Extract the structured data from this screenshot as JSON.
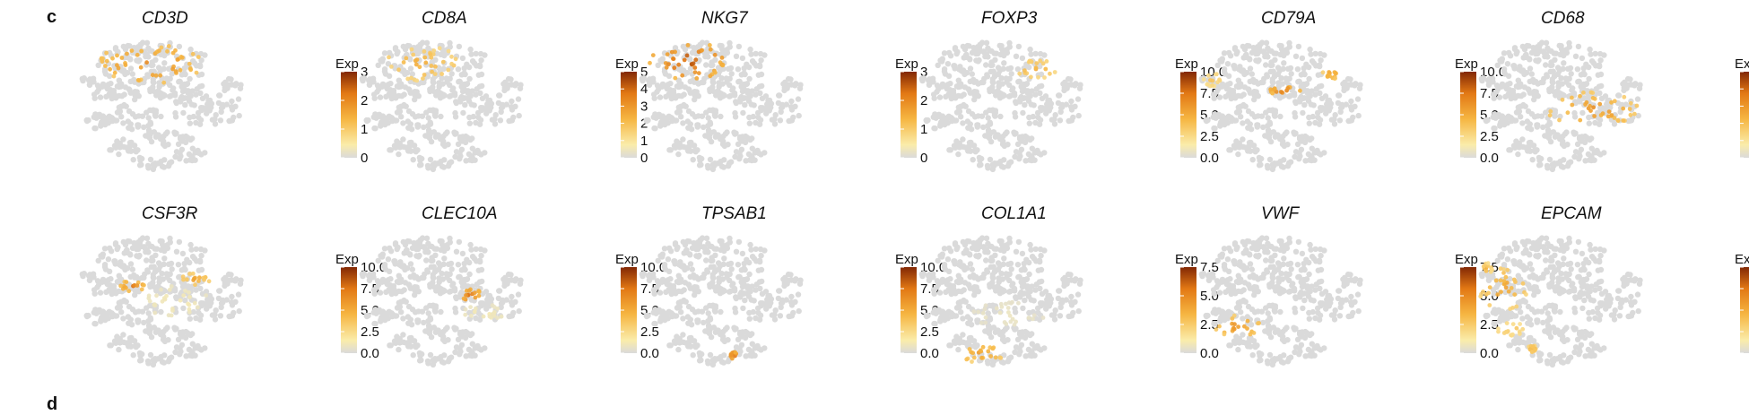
{
  "panel_label": "c",
  "next_panel_label": "d",
  "chart_data": [
    {
      "type": "scatter",
      "title": "CD3D",
      "legend_title": "Exp",
      "range": [
        0,
        3
      ],
      "ticks": [
        "0",
        "1",
        "2",
        "3"
      ],
      "hotspots": [
        {
          "region": "top",
          "cx": 0.4,
          "cy": 0.18,
          "rx": 0.3,
          "ry": 0.15,
          "level": 0.75
        }
      ]
    },
    {
      "type": "scatter",
      "title": "CD8A",
      "legend_title": "Exp",
      "range": [
        0,
        5
      ],
      "ticks": [
        "0",
        "1",
        "2",
        "3",
        "4",
        "5"
      ],
      "hotspots": [
        {
          "region": "top",
          "cx": 0.36,
          "cy": 0.18,
          "rx": 0.22,
          "ry": 0.13,
          "level": 0.55
        }
      ]
    },
    {
      "type": "scatter",
      "title": "NKG7",
      "legend_title": "Exp",
      "range": [
        0,
        3
      ],
      "ticks": [
        "0",
        "1",
        "2",
        "3"
      ],
      "hotspots": [
        {
          "region": "top",
          "cx": 0.28,
          "cy": 0.16,
          "rx": 0.22,
          "ry": 0.14,
          "level": 0.95
        }
      ]
    },
    {
      "type": "scatter",
      "title": "FOXP3",
      "legend_title": "Exp",
      "range": [
        0,
        10
      ],
      "ticks": [
        "0.0",
        "2.5",
        "5.0",
        "7.5",
        "10.0"
      ],
      "hotspots": [
        {
          "region": "top-right",
          "cx": 0.66,
          "cy": 0.22,
          "rx": 0.12,
          "ry": 0.07,
          "level": 0.55
        }
      ]
    },
    {
      "type": "scatter",
      "title": "CD79A",
      "legend_title": "Exp",
      "range": [
        0,
        10
      ],
      "ticks": [
        "0.0",
        "2.5",
        "5.0",
        "7.5",
        "10.0"
      ],
      "hotspots": [
        {
          "region": "left",
          "cx": 0.08,
          "cy": 0.3,
          "rx": 0.05,
          "ry": 0.05,
          "level": 0.45
        },
        {
          "region": "center",
          "cx": 0.48,
          "cy": 0.38,
          "rx": 0.1,
          "ry": 0.03,
          "level": 0.85
        },
        {
          "region": "right",
          "cx": 0.74,
          "cy": 0.26,
          "rx": 0.05,
          "ry": 0.04,
          "level": 0.65
        }
      ]
    },
    {
      "type": "scatter",
      "title": "CD68",
      "legend_title": "Exp",
      "range": [
        0,
        5
      ],
      "ticks": [
        "0",
        "1",
        "2",
        "3",
        "4",
        "5"
      ],
      "hotspots": [
        {
          "region": "right",
          "cx": 0.64,
          "cy": 0.52,
          "rx": 0.26,
          "ry": 0.13,
          "level": 0.7
        }
      ]
    },
    {
      "type": "scatter",
      "title": "CSF3R",
      "legend_title": "Exp",
      "range": [
        0,
        10
      ],
      "ticks": [
        "0.0",
        "2.5",
        "5.0",
        "7.5",
        "10.0"
      ],
      "hotspots": [
        {
          "region": "center-left",
          "cx": 0.3,
          "cy": 0.38,
          "rx": 0.08,
          "ry": 0.04,
          "level": 0.8
        },
        {
          "region": "right",
          "cx": 0.65,
          "cy": 0.33,
          "rx": 0.08,
          "ry": 0.05,
          "level": 0.6
        },
        {
          "region": "center",
          "cx": 0.55,
          "cy": 0.5,
          "rx": 0.18,
          "ry": 0.12,
          "level": 0.15
        }
      ]
    },
    {
      "type": "scatter",
      "title": "CLEC10A",
      "legend_title": "Exp",
      "range": [
        0,
        10
      ],
      "ticks": [
        "0.0",
        "2.5",
        "5.0",
        "7.5",
        "10.0"
      ],
      "hotspots": [
        {
          "region": "right",
          "cx": 0.62,
          "cy": 0.45,
          "rx": 0.07,
          "ry": 0.05,
          "level": 0.85
        },
        {
          "region": "right",
          "cx": 0.7,
          "cy": 0.58,
          "rx": 0.12,
          "ry": 0.06,
          "level": 0.15
        }
      ]
    },
    {
      "type": "scatter",
      "title": "TPSAB1",
      "legend_title": "Exp",
      "range": [
        0,
        10
      ],
      "ticks": [
        "0.0",
        "2.5",
        "5.0",
        "7.5",
        "10.0"
      ],
      "hotspots": [
        {
          "region": "bottom",
          "cx": 0.53,
          "cy": 0.9,
          "rx": 0.02,
          "ry": 0.03,
          "level": 1.0
        }
      ]
    },
    {
      "type": "scatter",
      "title": "COL1A1",
      "legend_title": "Exp",
      "range": [
        0,
        7.5
      ],
      "ticks": [
        "0.0",
        "2.5",
        "5.0",
        "7.5"
      ],
      "hotspots": [
        {
          "region": "bottom",
          "cx": 0.35,
          "cy": 0.88,
          "rx": 0.14,
          "ry": 0.07,
          "level": 0.65
        },
        {
          "region": "center",
          "cx": 0.5,
          "cy": 0.6,
          "rx": 0.2,
          "ry": 0.1,
          "level": 0.1
        }
      ]
    },
    {
      "type": "scatter",
      "title": "VWF",
      "legend_title": "Exp",
      "range": [
        0,
        7.5
      ],
      "ticks": [
        "2.5",
        "5.0",
        "7.5",
        "0.0"
      ],
      "hotspots": [
        {
          "region": "bottom-left",
          "cx": 0.22,
          "cy": 0.68,
          "rx": 0.13,
          "ry": 0.08,
          "level": 0.7
        }
      ]
    },
    {
      "type": "scatter",
      "title": "EPCAM",
      "legend_title": "Exp",
      "range": [
        0,
        10
      ],
      "ticks": [
        "0.0",
        "2.5",
        "5.0",
        "7.5",
        "10.0"
      ],
      "hotspots": [
        {
          "region": "left",
          "cx": 0.14,
          "cy": 0.4,
          "rx": 0.14,
          "ry": 0.16,
          "level": 0.6
        },
        {
          "region": "left",
          "cx": 0.05,
          "cy": 0.25,
          "rx": 0.03,
          "ry": 0.04,
          "level": 0.55
        },
        {
          "region": "bottom-left",
          "cx": 0.18,
          "cy": 0.7,
          "rx": 0.08,
          "ry": 0.05,
          "level": 0.45
        },
        {
          "region": "bottom",
          "cx": 0.3,
          "cy": 0.85,
          "rx": 0.03,
          "ry": 0.03,
          "level": 0.55
        }
      ]
    }
  ]
}
